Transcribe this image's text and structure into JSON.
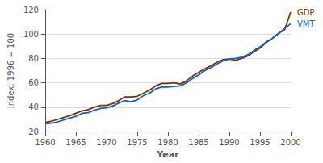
{
  "chart_data": {
    "type": "line",
    "xlabel": "Year",
    "ylabel": "Index: 1996 = 100",
    "x": [
      1960,
      1961,
      1962,
      1963,
      1964,
      1965,
      1966,
      1967,
      1968,
      1969,
      1970,
      1971,
      1972,
      1973,
      1974,
      1975,
      1976,
      1977,
      1978,
      1979,
      1980,
      1981,
      1982,
      1983,
      1984,
      1985,
      1986,
      1987,
      1988,
      1989,
      1990,
      1991,
      1992,
      1993,
      1994,
      1995,
      1996,
      1997,
      1998,
      1999,
      2000
    ],
    "series": [
      {
        "name": "GDP",
        "color": "#7B3000",
        "values": [
          27.5,
          28.5,
          30.0,
          31.5,
          33.0,
          35.0,
          37.0,
          38.0,
          40.0,
          41.5,
          41.5,
          43.0,
          45.5,
          48.5,
          48.5,
          49.0,
          51.5,
          54.0,
          57.5,
          59.5,
          59.5,
          60.0,
          59.0,
          61.5,
          65.5,
          68.5,
          71.5,
          74.0,
          77.0,
          79.0,
          79.5,
          78.5,
          80.0,
          82.0,
          85.5,
          88.5,
          93.0,
          96.5,
          100.5,
          103.5,
          118.0
        ]
      },
      {
        "name": "VMT",
        "color": "#1060CC",
        "values": [
          26.5,
          27.0,
          28.0,
          29.5,
          31.0,
          32.5,
          35.0,
          35.5,
          37.5,
          39.0,
          39.5,
          41.0,
          43.5,
          45.5,
          44.5,
          46.0,
          49.5,
          51.5,
          55.0,
          56.5,
          56.5,
          57.0,
          57.5,
          60.0,
          63.5,
          66.5,
          70.0,
          72.5,
          75.5,
          78.0,
          79.5,
          80.0,
          81.0,
          83.0,
          86.5,
          89.5,
          93.5,
          96.5,
          100.5,
          104.5,
          108.5
        ]
      }
    ],
    "xlim": [
      1960,
      2000
    ],
    "xticks": [
      1960,
      1965,
      1970,
      1975,
      1980,
      1985,
      1990,
      1995,
      2000
    ],
    "ylim": [
      20,
      120
    ],
    "yticks": [
      20,
      40,
      60,
      80,
      100,
      120
    ],
    "grid": true
  }
}
